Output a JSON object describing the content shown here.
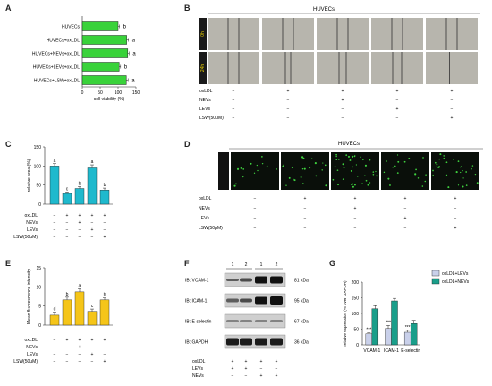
{
  "panels": {
    "A": {
      "letter": "A"
    },
    "B": {
      "letter": "B"
    },
    "C": {
      "letter": "C"
    },
    "D": {
      "letter": "D"
    },
    "E": {
      "letter": "E"
    },
    "F": {
      "letter": "F"
    },
    "G": {
      "letter": "G"
    }
  },
  "panelB": {
    "title": "HUVECs",
    "row_labels": [
      "0h",
      "24h"
    ],
    "scale_label": "200μm"
  },
  "panelD": {
    "title": "HUVECs",
    "row_label": "U937 adhesion",
    "scale_label": "200μm"
  },
  "treatment_rows": {
    "labels": [
      "oxLDL",
      "NEVs",
      "LEVs",
      "LSW(50μM)"
    ],
    "signs": [
      [
        "−",
        "+",
        "+",
        "+",
        "+"
      ],
      [
        "−",
        "−",
        "+",
        "−",
        "−"
      ],
      [
        "−",
        "−",
        "−",
        "+",
        "−"
      ],
      [
        "−",
        "−",
        "−",
        "−",
        "+"
      ]
    ]
  },
  "panelF": {
    "lane_numbers": [
      "1",
      "2",
      "1",
      "2"
    ],
    "blots": [
      {
        "label": "IB: VCAM-1",
        "kda": "81 kDa"
      },
      {
        "label": "IB: ICAM-1",
        "kda": "95 kDa"
      },
      {
        "label": "IB: E-selectin",
        "kda": "67 kDa"
      },
      {
        "label": "IB: GAPDH",
        "kda": "36 kDa"
      }
    ],
    "rows": {
      "labels": [
        "oxLDL",
        "LEVs",
        "NEVs"
      ],
      "signs": [
        [
          "+",
          "+",
          "+",
          "+"
        ],
        [
          "+",
          "+",
          "−",
          "−"
        ],
        [
          "−",
          "−",
          "+",
          "+"
        ]
      ]
    }
  },
  "chart_data": [
    {
      "panel": "A",
      "type": "bar",
      "orientation": "horizontal",
      "categories": [
        "HUVECs",
        "HUVECs+oxLDL",
        "HUVECs+NEVs+oxLDL",
        "HUVECs+LEVs+oxLDL",
        "HUVECs+LSW+oxLDL"
      ],
      "values": [
        100,
        124,
        127,
        103,
        123
      ],
      "errors": [
        4,
        5,
        4,
        4,
        5
      ],
      "sig_labels": [
        "b",
        "a",
        "a",
        "b",
        "a"
      ],
      "xlabel": "cell viability (%)",
      "ticks": [
        "0",
        "50",
        "100",
        "150"
      ],
      "xlim": [
        0,
        150
      ],
      "color": "#39d23a"
    },
    {
      "panel": "C",
      "type": "bar",
      "values": [
        100,
        28,
        41,
        95,
        37
      ],
      "errors": [
        6,
        4,
        5,
        8,
        5
      ],
      "sig_labels": [
        "a",
        "c",
        "b",
        "a",
        "b"
      ],
      "ylabel": "relative area (%)",
      "ticks": [
        "0",
        "50",
        "100",
        "150"
      ],
      "ylim": [
        0,
        150
      ],
      "color": "#1fb9cd"
    },
    {
      "panel": "E",
      "type": "bar",
      "values": [
        2.6,
        6.6,
        8.7,
        3.6,
        6.6
      ],
      "errors": [
        0.8,
        0.7,
        0.8,
        0.6,
        0.5
      ],
      "sig_labels": [
        "d",
        "b",
        "a",
        "c",
        "b"
      ],
      "ylabel": "Mean fluorescence intensity",
      "ticks": [
        "0",
        "5",
        "10",
        "15"
      ],
      "ylim": [
        0,
        15
      ],
      "color": "#f5c519"
    },
    {
      "panel": "G",
      "type": "bar",
      "categories": [
        "VCAM-1",
        "ICAM-1",
        "E-selectin"
      ],
      "series": [
        {
          "name": "oxLDL+LEVs",
          "values": [
            35,
            52,
            40
          ],
          "errors": [
            4,
            10,
            6
          ],
          "color": "#c9d0ea"
        },
        {
          "name": "oxLDL+NEVs",
          "values": [
            115,
            140,
            68
          ],
          "errors": [
            10,
            8,
            10
          ],
          "color": "#1a9e8a"
        }
      ],
      "sig_labels": [
        "***",
        "***",
        "***"
      ],
      "ylabel": "relative expression (% over GAPDH)",
      "ticks": [
        "0",
        "50",
        "100",
        "150",
        "200"
      ],
      "ylim": [
        0,
        200
      ]
    }
  ]
}
